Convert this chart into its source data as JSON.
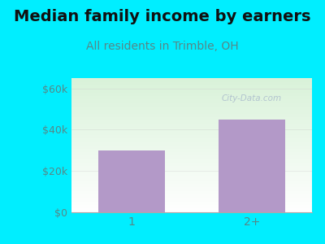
{
  "title": "Median family income by earners",
  "subtitle": "All residents in Trimble, OH",
  "categories": [
    "1",
    "2+"
  ],
  "values": [
    30000,
    45000
  ],
  "bar_color": "#b399c8",
  "title_fontsize": 14,
  "subtitle_fontsize": 10,
  "title_color": "#111111",
  "subtitle_color": "#558888",
  "tick_color": "#558888",
  "yticks": [
    0,
    20000,
    40000,
    60000
  ],
  "ytick_labels": [
    "$0",
    "$20k",
    "$40k",
    "$60k"
  ],
  "ylim": [
    0,
    65000
  ],
  "background_outer": "#00eeff",
  "grad_top_left": "#d8f0d8",
  "grad_bottom_right": "#f8fff8",
  "watermark": "City-Data.com",
  "watermark_color": "#aabbcc"
}
